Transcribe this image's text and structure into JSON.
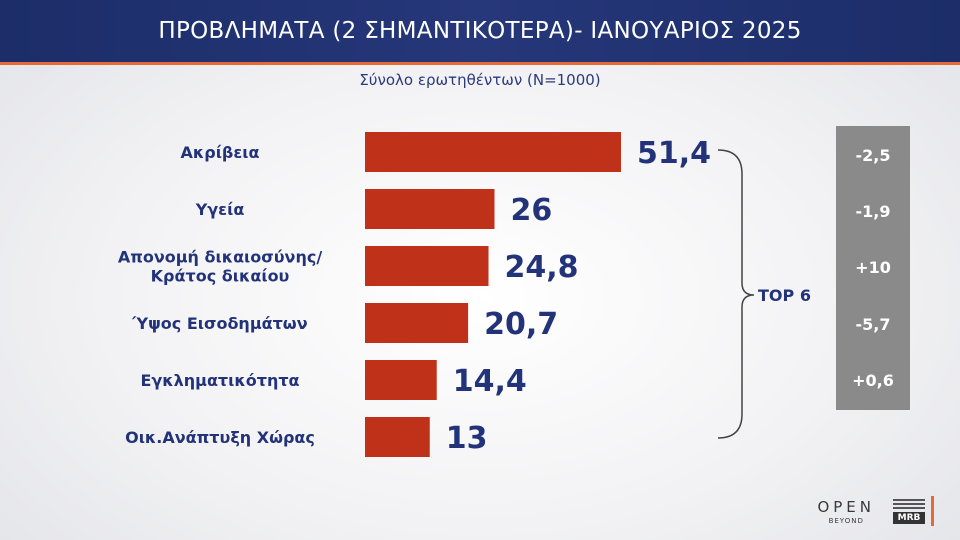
{
  "header": {
    "title": "ΠΡΟΒΛΗΜΑΤΑ (2 ΣΗΜΑΝΤΙΚΟΤΕΡΑ)- ΙΑΝΟΥΑΡΙΟΣ 2025",
    "subtitle": "Σύνολο ερωτηθέντων (N=1000)"
  },
  "bracket_label": "TOP 6",
  "changes": [
    "-2,5",
    "-1,9",
    "+10",
    "-5,7",
    "+0,6"
  ],
  "logos": {
    "open": "OPEN",
    "open_sub": "BEYOND",
    "mrb": "MRB"
  },
  "colors": {
    "bar": "#c0311a",
    "text": "#23337a",
    "header": "#1c2d69",
    "accent": "#e8683a",
    "panel": "#8a8a8a"
  },
  "chart_data": {
    "type": "bar",
    "orientation": "horizontal",
    "title": "ΠΡΟΒΛΗΜΑΤΑ (2 ΣΗΜΑΝΤΙΚΟΤΕΡΑ)- ΙΑΝΟΥΑΡΙΟΣ 2025",
    "subtitle": "Σύνολο ερωτηθέντων (N=1000)",
    "categories": [
      [
        "Ακρίβεια"
      ],
      [
        "Υγεία"
      ],
      [
        "Απονομή δικαιοσύνης/",
        "Κράτος δικαίου"
      ],
      [
        "Ύψος Εισοδημάτων"
      ],
      [
        "Εγκληματικότητα"
      ],
      [
        "Οικ.Ανάπτυξη Χώρας"
      ]
    ],
    "values": [
      51.4,
      26,
      24.8,
      20.7,
      14.4,
      13
    ],
    "value_labels": [
      "51,4",
      "26",
      "24,8",
      "20,7",
      "14,4",
      "13"
    ],
    "xlim": [
      0,
      51.4
    ],
    "grid": false,
    "legend": "none"
  }
}
